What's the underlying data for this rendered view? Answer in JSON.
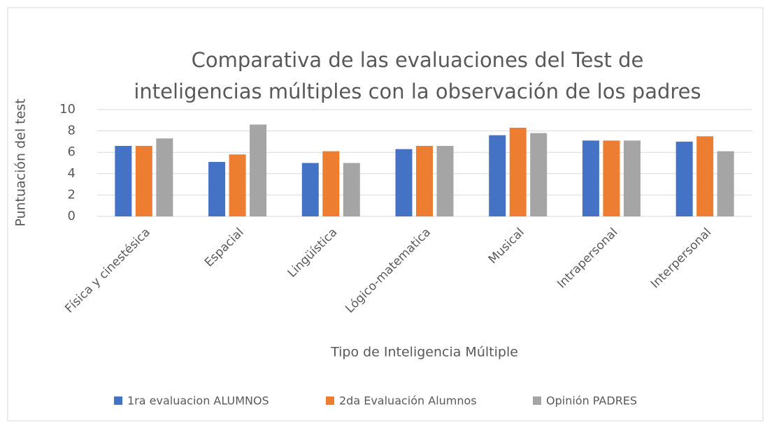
{
  "chart_data": {
    "type": "bar",
    "title": [
      "Comparativa de las evaluaciones del Test de",
      "inteligencias múltiples con la observación de los padres"
    ],
    "x_label": "Tipo de Inteligencia Múltiple",
    "y_label": "Puntuación del test",
    "categories": [
      "Física y cinestésica",
      "Espacial",
      "Lingüística",
      "Lógico-matematica",
      "Musical",
      "Intrapersonal",
      "Interpersonal"
    ],
    "series": [
      {
        "name": "1ra evaluacion ALUMNOS",
        "color": "#4472c4",
        "values": [
          6.6,
          5.1,
          5.0,
          6.3,
          7.6,
          7.1,
          7.0
        ]
      },
      {
        "name": "2da Evaluación Alumnos",
        "color": "#ed7d31",
        "values": [
          6.6,
          5.8,
          6.1,
          6.6,
          8.3,
          7.1,
          7.5
        ]
      },
      {
        "name": "Opinión PADRES",
        "color": "#a5a5a5",
        "values": [
          7.3,
          8.6,
          5.0,
          6.6,
          7.8,
          7.1,
          6.1
        ]
      }
    ],
    "ylim": [
      0,
      10
    ],
    "yticks": [
      0,
      2,
      4,
      6,
      8,
      10
    ],
    "grid": true,
    "legend": "bottom"
  }
}
